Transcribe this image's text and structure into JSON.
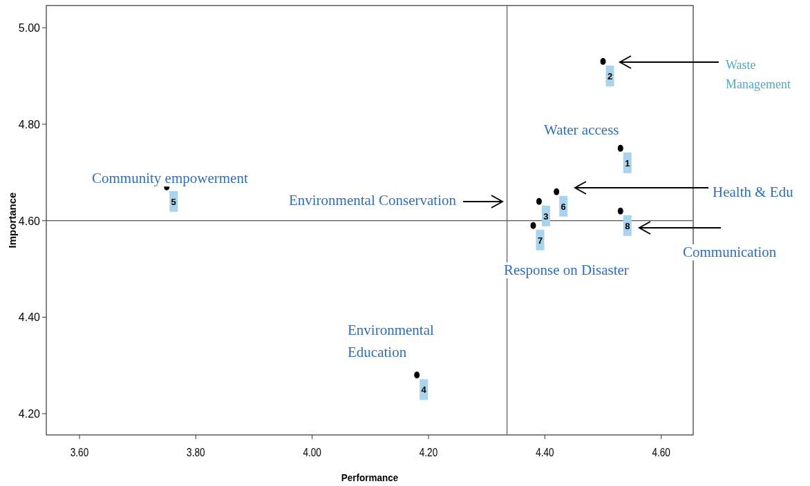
{
  "chart_data": {
    "type": "scatter",
    "xlabel": "Performance",
    "ylabel": "Importance",
    "x": [
      4.53,
      4.5,
      4.39,
      4.18,
      3.75,
      4.42,
      4.38,
      4.53
    ],
    "values": [
      4.75,
      4.93,
      4.64,
      4.28,
      4.67,
      4.66,
      4.59,
      4.62
    ],
    "color": "#000000",
    "marker": "circle",
    "xlim": [
      3.543,
      4.655
    ],
    "xticks": [
      {
        "value": 3.6,
        "label": "3.60"
      },
      {
        "value": 3.8,
        "label": "3.80"
      },
      {
        "value": 4.0,
        "label": "4.00"
      },
      {
        "value": 4.2,
        "label": "4.20"
      },
      {
        "value": 4.4,
        "label": "4.40"
      },
      {
        "value": 4.6,
        "label": "4.60"
      }
    ],
    "ylim": [
      4.156,
      5.046
    ],
    "yticks": [
      {
        "value": 4.2,
        "label": "4.20"
      },
      {
        "value": 4.4,
        "label": "4.40"
      },
      {
        "value": 4.6,
        "label": "4.60"
      },
      {
        "value": 4.8,
        "label": "4.80"
      },
      {
        "value": 5.0,
        "label": "5.00"
      }
    ],
    "ref_lines": [
      {
        "axis": "x",
        "value": 4.335
      },
      {
        "axis": "y",
        "value": 4.6
      }
    ],
    "annotations": [
      {
        "text": "1",
        "x": 4.53,
        "y": 4.75
      },
      {
        "text": "2",
        "x": 4.5,
        "y": 4.93
      },
      {
        "text": "3",
        "x": 4.39,
        "y": 4.64
      },
      {
        "text": "4",
        "x": 4.18,
        "y": 4.28
      },
      {
        "text": "5",
        "x": 3.75,
        "y": 4.67
      },
      {
        "text": "6",
        "x": 4.42,
        "y": 4.66
      },
      {
        "text": "7",
        "x": 4.38,
        "y": 4.59
      },
      {
        "text": "8",
        "x": 4.53,
        "y": 4.62
      },
      "Water access",
      "Waste\nManagement",
      "Environmental Conservation",
      "Environmental\nEducation",
      "Community empowerment",
      "Health & Edu",
      "Response on Disaster",
      "Communication"
    ],
    "grid": false
  }
}
